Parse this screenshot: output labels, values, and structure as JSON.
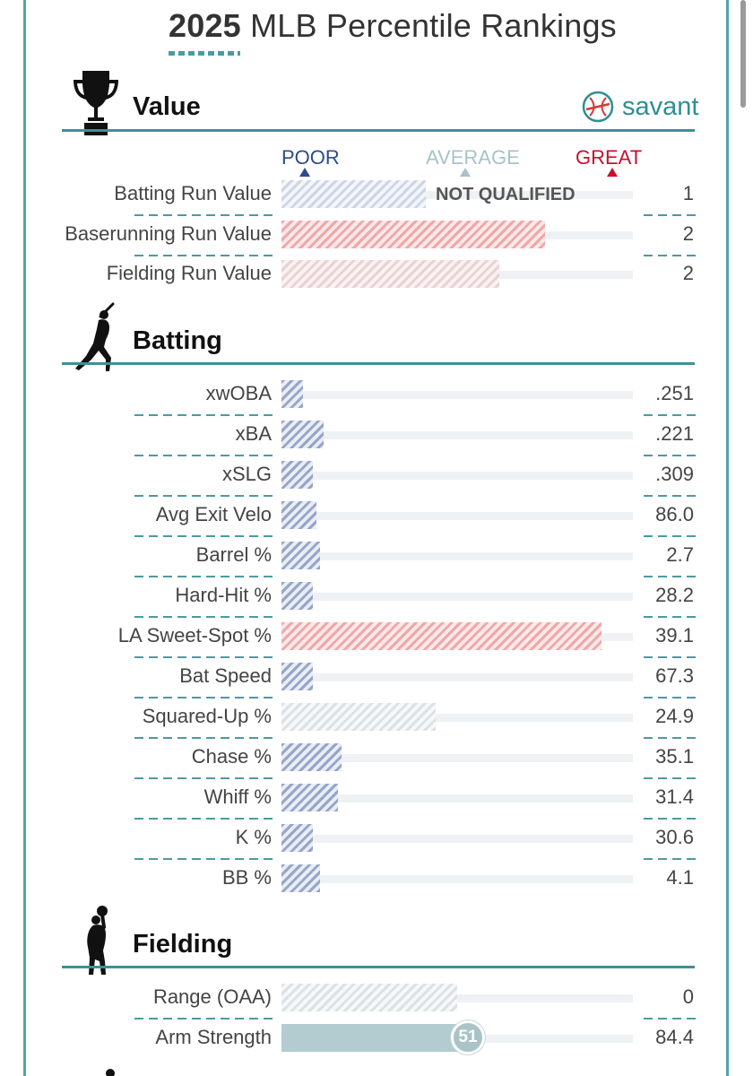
{
  "header": {
    "year": "2025",
    "title_rest": "MLB Percentile Rankings"
  },
  "brand": {
    "name": "savant"
  },
  "legend": {
    "poor": "POOR",
    "average": "AVERAGE",
    "great": "GREAT"
  },
  "colors": {
    "teal": "#3f8f95",
    "poor_blue": "#2e4a8c",
    "average_grey": "#a9c2c9",
    "great_red": "#c8102e"
  },
  "sections": {
    "value": {
      "title": "Value",
      "icon": "trophy-icon",
      "rows": [
        {
          "label": "Batting Run Value",
          "value": "1",
          "percentile": 41,
          "color": "lightblue",
          "qualified": false,
          "note": "NOT QUALIFIED"
        },
        {
          "label": "Baserunning Run Value",
          "value": "2",
          "percentile": 75,
          "color": "red",
          "qualified": true
        },
        {
          "label": "Fielding Run Value",
          "value": "2",
          "percentile": 62,
          "color": "pink",
          "qualified": true
        }
      ]
    },
    "batting": {
      "title": "Batting",
      "icon": "batter-silhouette-icon",
      "rows": [
        {
          "label": "xwOBA",
          "value": ".251",
          "percentile": 6,
          "color": "blue"
        },
        {
          "label": "xBA",
          "value": ".221",
          "percentile": 12,
          "color": "blue"
        },
        {
          "label": "xSLG",
          "value": ".309",
          "percentile": 9,
          "color": "blue"
        },
        {
          "label": "Avg Exit Velo",
          "value": "86.0",
          "percentile": 10,
          "color": "blue"
        },
        {
          "label": "Barrel %",
          "value": "2.7",
          "percentile": 11,
          "color": "blue"
        },
        {
          "label": "Hard-Hit %",
          "value": "28.2",
          "percentile": 9,
          "color": "blue"
        },
        {
          "label": "LA Sweet-Spot %",
          "value": "39.1",
          "percentile": 91,
          "color": "red"
        },
        {
          "label": "Bat Speed",
          "value": "67.3",
          "percentile": 9,
          "color": "blue"
        },
        {
          "label": "Squared-Up %",
          "value": "24.9",
          "percentile": 44,
          "color": "grey"
        },
        {
          "label": "Chase %",
          "value": "35.1",
          "percentile": 17,
          "color": "blue"
        },
        {
          "label": "Whiff %",
          "value": "31.4",
          "percentile": 16,
          "color": "blue"
        },
        {
          "label": "K %",
          "value": "30.6",
          "percentile": 9,
          "color": "blue"
        },
        {
          "label": "BB %",
          "value": "4.1",
          "percentile": 11,
          "color": "blue"
        }
      ]
    },
    "fielding": {
      "title": "Fielding",
      "icon": "fielder-silhouette-icon",
      "rows": [
        {
          "label": "Range (OAA)",
          "value": "0",
          "percentile": 50,
          "color": "grey"
        },
        {
          "label": "Arm Strength",
          "value": "84.4",
          "percentile": 51,
          "color": "teal",
          "badge": "51"
        }
      ]
    }
  }
}
